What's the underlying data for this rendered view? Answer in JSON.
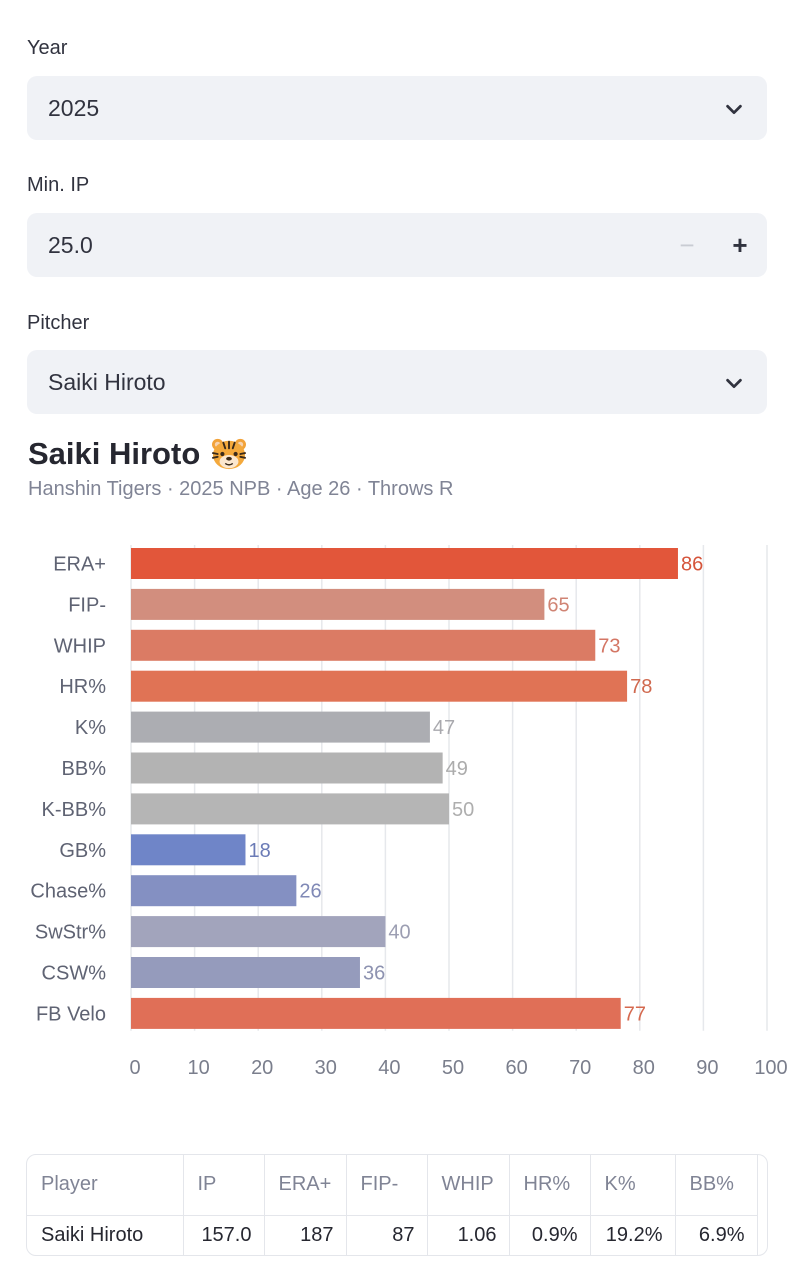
{
  "year": {
    "label": "Year",
    "value": "2025"
  },
  "min_ip": {
    "label": "Min. IP",
    "value": "25.0",
    "minus": "−",
    "plus": "+"
  },
  "pitcher": {
    "label": "Pitcher",
    "value": "Saiki Hiroto"
  },
  "player": {
    "name": "Saiki Hiroto",
    "team_icon": "tiger-icon",
    "subtitle": "Hanshin Tigers · 2025 NPB · Age 26 · Throws R"
  },
  "chart_data": {
    "type": "bar",
    "orientation": "horizontal",
    "categories": [
      "ERA+",
      "FIP-",
      "WHIP",
      "HR%",
      "K%",
      "BB%",
      "K-BB%",
      "GB%",
      "Chase%",
      "SwStr%",
      "CSW%",
      "FB Velo"
    ],
    "values": [
      86,
      65,
      73,
      78,
      47,
      49,
      50,
      18,
      26,
      40,
      36,
      77
    ],
    "colors": [
      "#e2563a",
      "#d28e7e",
      "#db7b64",
      "#e07355",
      "#acadb2",
      "#b3b3b3",
      "#b5b5b5",
      "#6f85c8",
      "#8490c2",
      "#a2a4bc",
      "#959bbc",
      "#e06f57"
    ],
    "label_colors": [
      "#d5543a",
      "#d08474",
      "#d47664",
      "#d0694f",
      "#a9a9ae",
      "#acacac",
      "#aeaeae",
      "#6b7bb6",
      "#8089b6",
      "#9c9eb2",
      "#8d92b0",
      "#d5694f"
    ],
    "xlim": [
      0,
      100
    ],
    "xticks": [
      0,
      10,
      20,
      30,
      40,
      50,
      60,
      70,
      80,
      90,
      100
    ],
    "grid": true
  },
  "table": {
    "columns": [
      "Player",
      "IP",
      "ERA+",
      "FIP-",
      "WHIP",
      "HR%",
      "K%",
      "BB%"
    ],
    "rows": [
      [
        "Saiki Hiroto",
        "157.0",
        "187",
        "87",
        "1.06",
        "0.9%",
        "19.2%",
        "6.9%"
      ]
    ]
  }
}
